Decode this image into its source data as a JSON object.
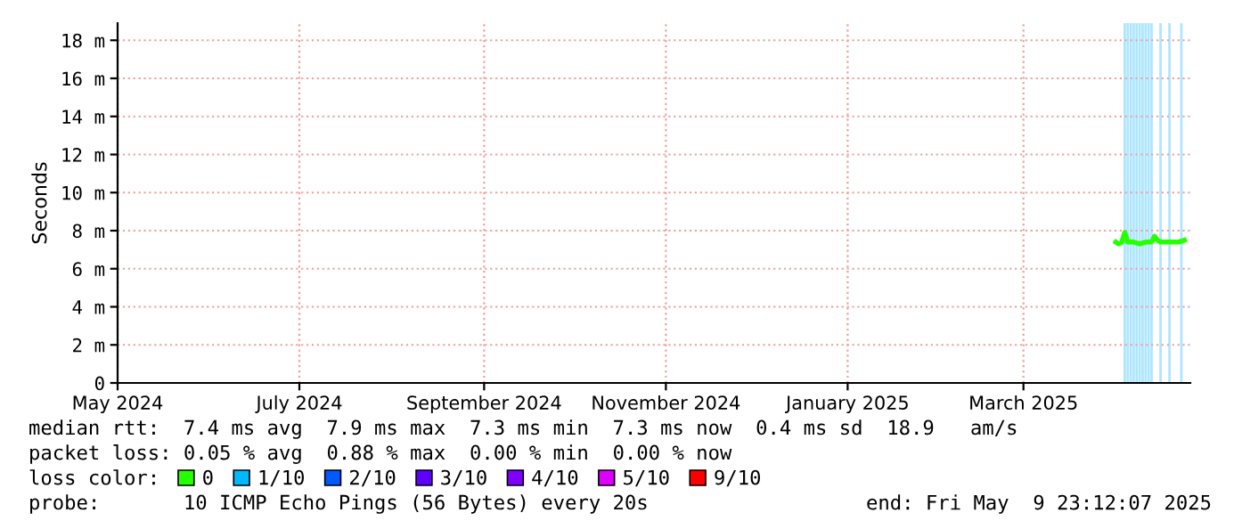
{
  "chart_data": {
    "type": "line",
    "ylabel": "Seconds",
    "x": [
      "2025-04-01",
      "2025-04-02",
      "2025-04-03",
      "2025-04-04",
      "2025-04-05",
      "2025-04-07",
      "2025-04-09",
      "2025-04-11",
      "2025-04-13",
      "2025-04-14",
      "2025-04-15",
      "2025-04-16",
      "2025-04-18",
      "2025-04-20",
      "2025-04-22",
      "2025-04-24"
    ],
    "series": [
      {
        "name": "0",
        "color": "#26ff00",
        "values": [
          7.4,
          7.3,
          7.4,
          7.9,
          7.4,
          7.4,
          7.3,
          7.4,
          7.4,
          7.7,
          7.5,
          7.4,
          7.4,
          7.4,
          7.4,
          7.5
        ]
      },
      {
        "name": "1/10",
        "color": "#00b8ff",
        "values": [
          null,
          null,
          null,
          null,
          null,
          null,
          null,
          null,
          null,
          null,
          null,
          null,
          null,
          null,
          null,
          null
        ]
      },
      {
        "name": "2/10",
        "color": "#0059ff",
        "values": [
          null,
          null,
          null,
          null,
          null,
          null,
          null,
          null,
          null,
          null,
          null,
          null,
          null,
          null,
          null,
          null
        ]
      },
      {
        "name": "3/10",
        "color": "#5e00ff",
        "values": [
          null,
          null,
          null,
          null,
          null,
          null,
          null,
          null,
          null,
          null,
          null,
          null,
          null,
          null,
          null,
          null
        ]
      },
      {
        "name": "4/10",
        "color": "#7e00ff",
        "values": [
          null,
          null,
          null,
          null,
          null,
          null,
          null,
          null,
          null,
          null,
          null,
          null,
          null,
          null,
          null,
          null
        ]
      },
      {
        "name": "5/10",
        "color": "#dd00ff",
        "values": [
          null,
          null,
          null,
          null,
          null,
          null,
          null,
          null,
          null,
          null,
          null,
          null,
          null,
          null,
          null,
          null
        ]
      },
      {
        "name": "9/10",
        "color": "#ff0000",
        "values": [
          null,
          null,
          null,
          null,
          null,
          null,
          null,
          null,
          null,
          null,
          null,
          null,
          null,
          null,
          null,
          null
        ]
      }
    ],
    "ref_lines": [
      {
        "axis": "x",
        "value": "2025-04-04",
        "color": "#aee6ff"
      },
      {
        "axis": "x",
        "value": "2025-04-05",
        "color": "#aee6ff"
      },
      {
        "axis": "x",
        "value": "2025-04-06",
        "color": "#aee6ff"
      },
      {
        "axis": "x",
        "value": "2025-04-07",
        "color": "#aee6ff"
      },
      {
        "axis": "x",
        "value": "2025-04-08",
        "color": "#aee6ff"
      },
      {
        "axis": "x",
        "value": "2025-04-09",
        "color": "#aee6ff"
      },
      {
        "axis": "x",
        "value": "2025-04-10",
        "color": "#aee6ff"
      },
      {
        "axis": "x",
        "value": "2025-04-11",
        "color": "#aee6ff"
      },
      {
        "axis": "x",
        "value": "2025-04-12",
        "color": "#aee6ff"
      },
      {
        "axis": "x",
        "value": "2025-04-13",
        "color": "#aee6ff"
      },
      {
        "axis": "x",
        "value": "2025-04-16",
        "color": "#aee6ff"
      },
      {
        "axis": "x",
        "value": "2025-04-19",
        "color": "#aee6ff"
      },
      {
        "axis": "x",
        "value": "2025-04-23",
        "color": "#aee6ff"
      }
    ],
    "xlim": [
      "2024-05-01",
      "2025-04-26"
    ],
    "xticks": [
      {
        "value": "2024-05-01",
        "label": "May 2024"
      },
      {
        "value": "2024-07-01",
        "label": "July 2024"
      },
      {
        "value": "2024-09-01",
        "label": "September 2024"
      },
      {
        "value": "2024-11-01",
        "label": "November 2024"
      },
      {
        "value": "2025-01-01",
        "label": "January 2025"
      },
      {
        "value": "2025-03-01",
        "label": "March 2025"
      }
    ],
    "ylim": [
      0,
      18.9
    ],
    "yticks": [
      0,
      {
        "value": 2,
        "label": "2 m"
      },
      {
        "value": 4,
        "label": "4 m"
      },
      {
        "value": 6,
        "label": "6 m"
      },
      {
        "value": 8,
        "label": "8 m"
      },
      {
        "value": 10,
        "label": "10 m"
      },
      {
        "value": 12,
        "label": "12 m"
      },
      {
        "value": 14,
        "label": "14 m"
      },
      {
        "value": 16,
        "label": "16 m"
      },
      {
        "value": 18,
        "label": "18 m"
      }
    ],
    "grid": true,
    "legend": "bottom",
    "marker": "none",
    "line_style": "solid",
    "annotations": [
      "median rtt:  7.4 ms avg  7.9 ms max  7.3 ms min  7.3 ms now  0.4 ms sd  18.9   am/s",
      "packet loss: 0.05 % avg  0.88 % max  0.00 % min  0.00 % now",
      "loss color:",
      "probe:       10 ICMP Echo Pings (56 Bytes) every 20s",
      "end: Fri May  9 23:12:07 2025"
    ]
  }
}
